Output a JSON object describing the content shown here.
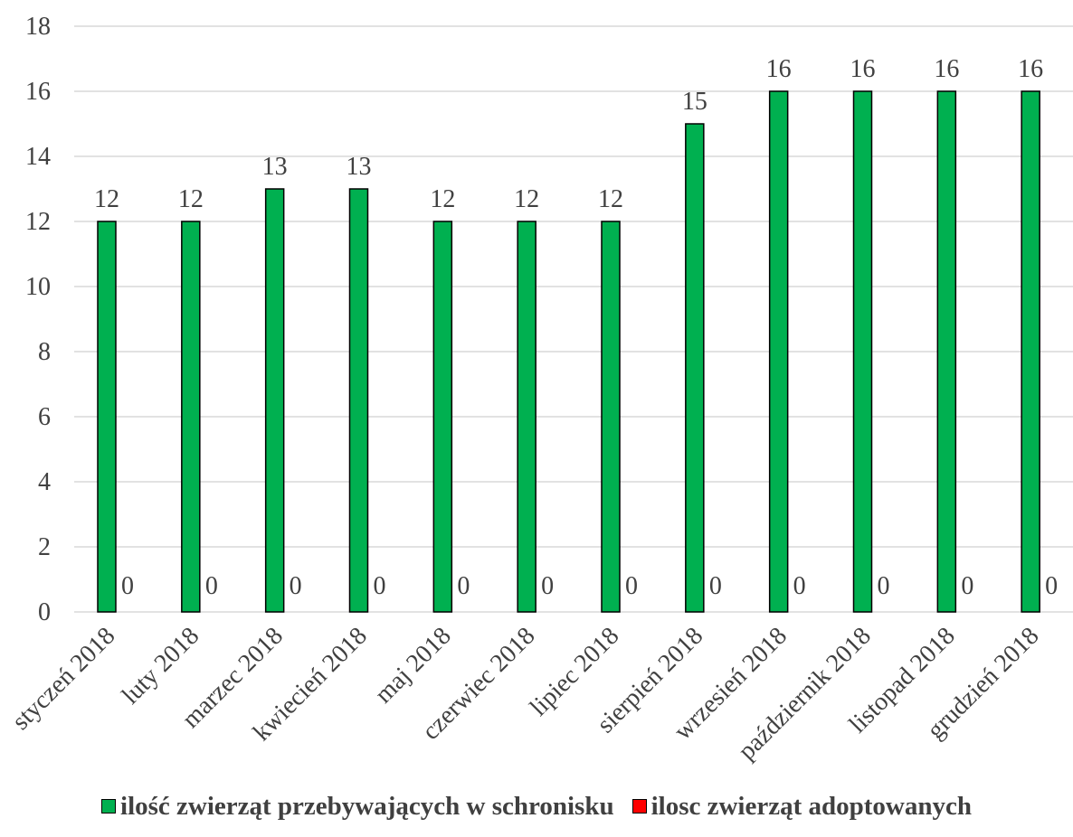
{
  "chart_data": {
    "type": "bar",
    "title": "",
    "xlabel": "",
    "ylabel": "",
    "categories": [
      "styczeń 2018",
      "luty 2018",
      "marzec 2018",
      "kwiecień 2018",
      "maj 2018",
      "czerwiec 2018",
      "lipiec 2018",
      "sierpień 2018",
      "wrzesień 2018",
      "październik 2018",
      "listopad 2018",
      "grudzień 2018"
    ],
    "series": [
      {
        "name": "ilość zwierząt przebywających w schronisku",
        "color": "#00b050",
        "values": [
          12,
          12,
          13,
          13,
          12,
          12,
          12,
          15,
          16,
          16,
          16,
          16
        ]
      },
      {
        "name": "ilosc zwierząt adoptowanych",
        "color": "#ff0000",
        "values": [
          0,
          0,
          0,
          0,
          0,
          0,
          0,
          0,
          0,
          0,
          0,
          0
        ]
      }
    ],
    "ylim": [
      0,
      18
    ],
    "yticks": [
      0,
      2,
      4,
      6,
      8,
      10,
      12,
      14,
      16,
      18
    ],
    "grid": true,
    "data_labels": true,
    "legend_position": "bottom"
  }
}
